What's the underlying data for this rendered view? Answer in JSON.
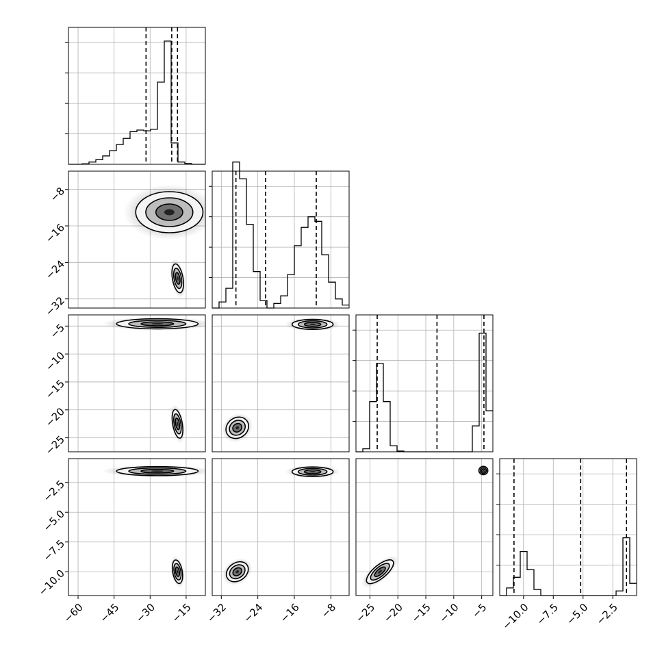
{
  "chart_data": {
    "type": "corner",
    "grid": true,
    "parameters": [
      {
        "range": [
          -64,
          -7
        ],
        "ticks": [
          -60,
          -45,
          -30,
          -15
        ],
        "tick_labels": [
          "−60",
          "−45",
          "−30",
          "−15"
        ],
        "quantiles": [
          -31.7,
          -21.0,
          -18.6
        ],
        "hist": {
          "edges": [
            -64,
            -61.15,
            -58.3,
            -55.45,
            -52.6,
            -49.75,
            -46.9,
            -44.05,
            -41.2,
            -38.35,
            -35.5,
            -32.65,
            -29.8,
            -26.95,
            -24.1,
            -21.25,
            -18.4,
            -15.55,
            -12.7,
            -9.85,
            -7
          ],
          "counts": [
            0,
            0,
            0.3,
            1.5,
            3,
            5.5,
            9,
            13,
            17,
            21.5,
            22.5,
            22,
            23,
            54,
            81,
            14,
            1.5,
            0.5,
            0,
            0
          ]
        }
      },
      {
        "range": [
          -34,
          -4
        ],
        "ticks": [
          -32,
          -24,
          -16,
          -8
        ],
        "tick_labels": [
          "−32",
          "−24",
          "−16",
          "−8"
        ],
        "quantiles": [
          -28.8,
          -22.3,
          -11.2
        ],
        "hist": {
          "edges": [
            -34,
            -32.5,
            -31,
            -29.5,
            -28,
            -26.5,
            -25,
            -23.5,
            -22,
            -20.5,
            -19,
            -17.5,
            -16,
            -14.5,
            -13,
            -11.5,
            -10,
            -8.5,
            -7,
            -5.5,
            -4
          ],
          "counts": [
            0,
            4,
            13,
            96,
            85,
            55,
            24,
            5,
            0,
            3,
            8,
            22,
            41,
            53,
            60,
            57,
            35,
            17,
            6,
            2
          ]
        }
      },
      {
        "range": [
          -27.5,
          -3
        ],
        "ticks": [
          -25,
          -20,
          -15,
          -10,
          -5
        ],
        "tick_labels": [
          "−25",
          "−20",
          "−15",
          "−10",
          "−5"
        ],
        "quantiles": [
          -23.7,
          -13.0,
          -4.6
        ],
        "hist": {
          "edges": [
            -27.5,
            -26.275,
            -25.05,
            -23.825,
            -22.6,
            -21.375,
            -20.15,
            -18.925,
            -17.7,
            -16.475,
            -15.25,
            -14.025,
            -12.8,
            -11.575,
            -10.35,
            -9.125,
            -7.9,
            -6.675,
            -5.45,
            -4.225,
            -3
          ],
          "counts": [
            0,
            2,
            33,
            58,
            33,
            4,
            0.5,
            0,
            0,
            0,
            0,
            0,
            0,
            0,
            0,
            0,
            0,
            17,
            78,
            27
          ]
        }
      },
      {
        "range": [
          -12,
          -0.5
        ],
        "ticks": [
          -10,
          -7.5,
          -5,
          -2.5
        ],
        "tick_labels": [
          "−10.0",
          "−7.5",
          "−5.0",
          "−2.5"
        ],
        "quantiles": [
          -10.8,
          -5.2,
          -1.35
        ],
        "hist": {
          "edges": [
            -12,
            -11.425,
            -10.85,
            -10.275,
            -9.7,
            -9.125,
            -8.55,
            -7.975,
            -7.4,
            -6.825,
            -6.25,
            -5.675,
            -5.1,
            -4.525,
            -3.95,
            -3.375,
            -2.8,
            -2.225,
            -1.65,
            -1.075,
            -0.5
          ],
          "counts": [
            0,
            5,
            12,
            29,
            17,
            4,
            0,
            0,
            0,
            0,
            0,
            0,
            0,
            0,
            0,
            0,
            0,
            3,
            38,
            8
          ]
        }
      }
    ],
    "row_labels_rotated": true
  }
}
